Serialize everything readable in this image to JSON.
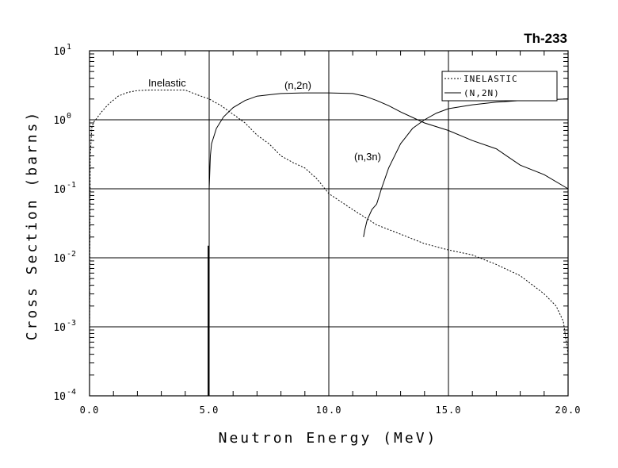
{
  "chart_data": {
    "type": "line",
    "title": "Th-233",
    "xlabel": "Neutron Energy (MeV)",
    "ylabel": "Cross Section (barns)",
    "xlim": [
      0,
      20
    ],
    "ylim": [
      0.0001,
      10
    ],
    "y_scale": "log",
    "x_ticks": [
      "0.0",
      "5.0",
      "10.0",
      "15.0",
      "20.0"
    ],
    "y_ticks": [
      {
        "base": "10",
        "exp": "1"
      },
      {
        "base": "10",
        "exp": "0"
      },
      {
        "base": "10",
        "exp": "-1"
      },
      {
        "base": "10",
        "exp": "-2"
      },
      {
        "base": "10",
        "exp": "-3"
      },
      {
        "base": "10",
        "exp": "-4"
      }
    ],
    "grid": true,
    "legend_position": "top-right",
    "legend": [
      "INELASTIC",
      "(N,2N)"
    ],
    "annotations": [
      "Inelastic",
      "(n,2n)",
      "(n,3n)"
    ],
    "series": [
      {
        "name": "INELASTIC",
        "style": "dashed",
        "x": [
          0.0,
          0.03,
          0.1,
          0.2,
          0.3,
          0.5,
          0.8,
          1.2,
          1.6,
          2.0,
          2.5,
          3.0,
          3.5,
          4.0,
          4.5,
          5.0,
          5.5,
          6.0,
          6.5,
          7.0,
          7.5,
          8.0,
          8.5,
          9.0,
          9.5,
          10.0,
          11.0,
          12.0,
          13.0,
          14.0,
          15.0,
          16.0,
          17.0,
          18.0,
          19.0,
          19.5,
          19.8,
          20.0
        ],
        "y": [
          0.0003,
          0.3,
          0.8,
          0.95,
          1.05,
          1.3,
          1.7,
          2.2,
          2.5,
          2.65,
          2.7,
          2.7,
          2.7,
          2.7,
          2.3,
          2.0,
          1.6,
          1.2,
          0.9,
          0.6,
          0.45,
          0.3,
          0.24,
          0.2,
          0.14,
          0.085,
          0.05,
          0.03,
          0.022,
          0.016,
          0.013,
          0.011,
          0.008,
          0.0055,
          0.003,
          0.002,
          0.0012,
          0.0004
        ]
      },
      {
        "name": "(N,2N)",
        "style": "solid",
        "x": [
          5.0,
          5.05,
          5.1,
          5.3,
          5.6,
          6.0,
          6.5,
          7.0,
          7.5,
          8.0,
          9.0,
          10.0,
          11.0,
          11.5,
          12.0,
          12.5,
          13.0,
          14.0,
          15.0,
          16.0,
          17.0,
          18.0,
          19.0,
          20.0
        ],
        "y": [
          0.1,
          0.3,
          0.45,
          0.75,
          1.1,
          1.5,
          1.9,
          2.2,
          2.3,
          2.4,
          2.45,
          2.45,
          2.4,
          2.2,
          1.9,
          1.6,
          1.3,
          0.9,
          0.7,
          0.5,
          0.38,
          0.22,
          0.16,
          0.1
        ]
      },
      {
        "name": "(n,3n)",
        "style": "solid",
        "x": [
          11.45,
          11.5,
          11.6,
          11.8,
          12.0,
          12.2,
          12.5,
          13.0,
          13.5,
          14.0,
          14.5,
          15.0,
          16.0,
          17.0,
          18.0,
          19.0,
          20.0
        ],
        "y": [
          0.02,
          0.025,
          0.035,
          0.05,
          0.06,
          0.1,
          0.2,
          0.45,
          0.75,
          1.0,
          1.25,
          1.45,
          1.65,
          1.8,
          1.9,
          1.95,
          2.0
        ]
      },
      {
        "name": "threshold-spike",
        "style": "solid-bold",
        "x": [
          4.97,
          4.97
        ],
        "y": [
          0.0001,
          0.015
        ]
      }
    ]
  }
}
